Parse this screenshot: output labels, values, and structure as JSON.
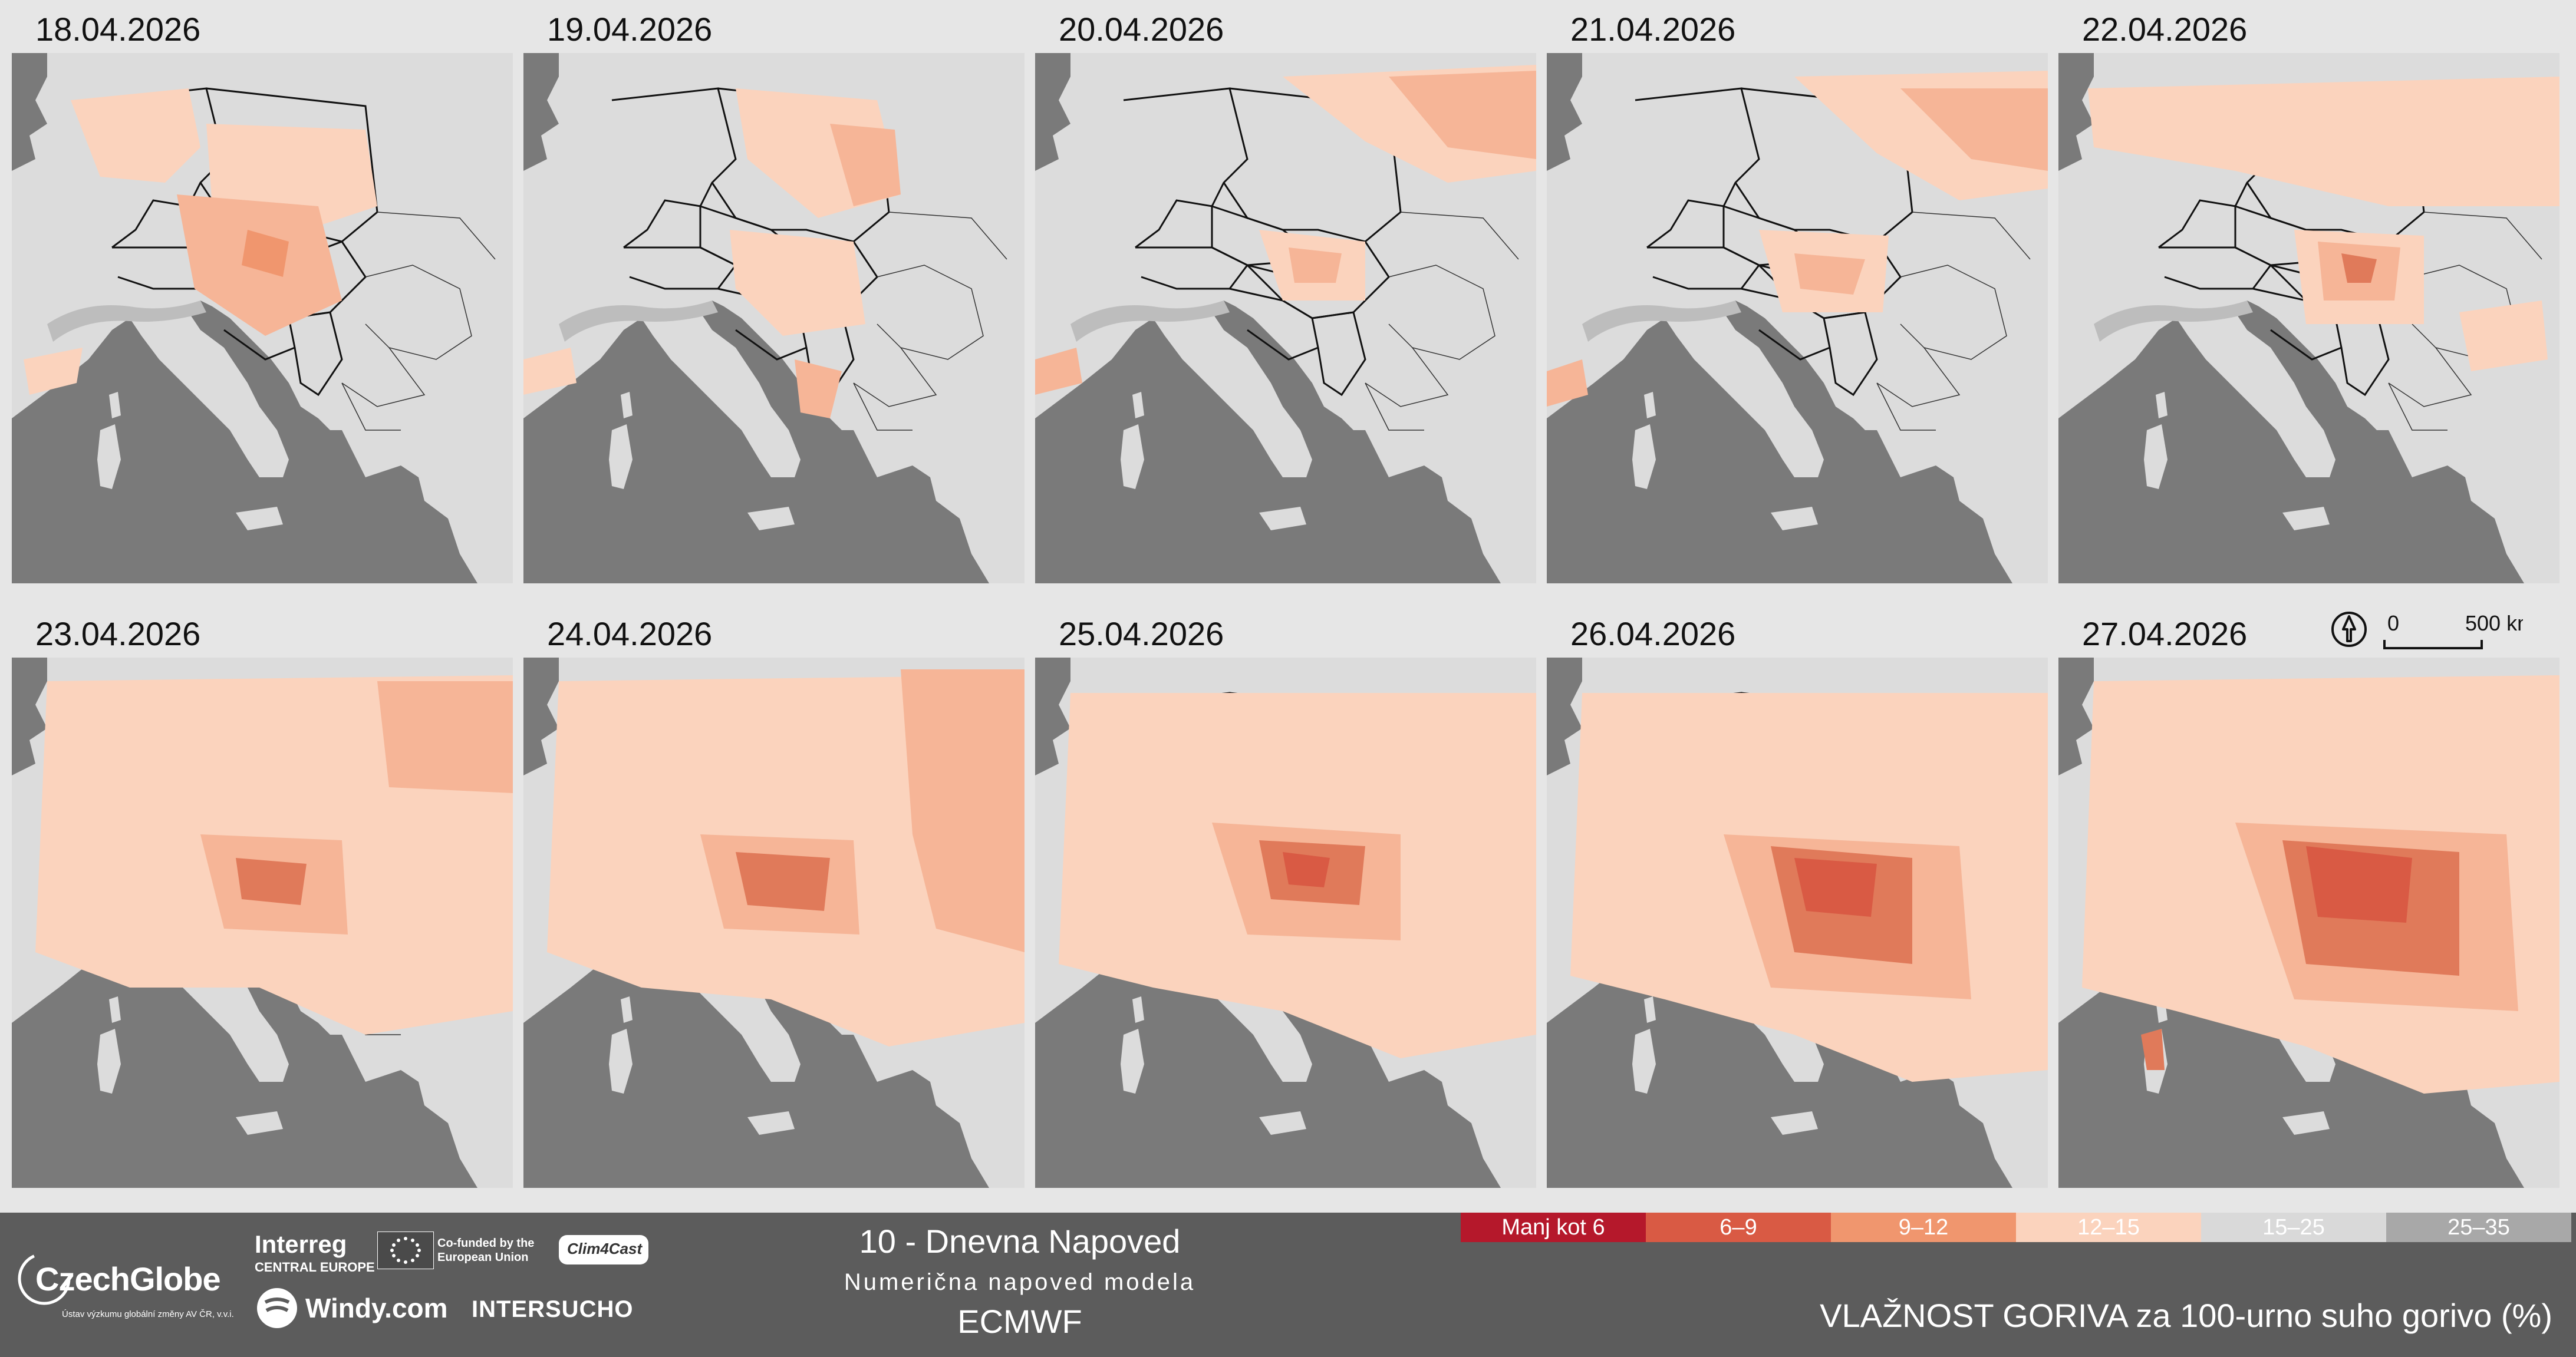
{
  "panels": [
    {
      "date": "18.04.2026"
    },
    {
      "date": "19.04.2026"
    },
    {
      "date": "20.04.2026"
    },
    {
      "date": "21.04.2026"
    },
    {
      "date": "22.04.2026"
    },
    {
      "date": "23.04.2026"
    },
    {
      "date": "24.04.2026"
    },
    {
      "date": "25.04.2026"
    },
    {
      "date": "26.04.2026"
    },
    {
      "date": "27.04.2026"
    }
  ],
  "scale_bar": {
    "zero": "0",
    "distance": "500 km"
  },
  "footer": {
    "title": "10 - Dnevna Napoved",
    "subtitle": "Numerična napoved modela",
    "model": "ECMWF",
    "variable": "VLAŽNOST GORIVA za 100-urno suho gorivo (%)",
    "logos": {
      "czechglobe": "CzechGlobe",
      "czechglobe_sub": "Ústav výzkumu globální změny AV ČR, v.v.i.",
      "interreg": "Interreg",
      "interreg_sub": "CENTRAL EUROPE",
      "cofunded": "Co-funded by the European Union",
      "clim4cast": "Clim4Cast",
      "windy": "Windy.com",
      "intersucho": "INTERSUCHO"
    }
  },
  "legend": [
    {
      "label": "Manj kot 6",
      "color": "#b5182b"
    },
    {
      "label": "6–9",
      "color": "#d95a44"
    },
    {
      "label": "9–12",
      "color": "#f0966e"
    },
    {
      "label": "12–15",
      "color": "#fbd3bd"
    },
    {
      "label": "15–25",
      "color": "#d9d9d9"
    },
    {
      "label": "25–35",
      "color": "#a8a8a8"
    }
  ],
  "colors": {
    "sea": "#7a7a7a",
    "land": "#dcdcdc",
    "background": "#e6e6e6",
    "footer": "#5c5c5c"
  }
}
